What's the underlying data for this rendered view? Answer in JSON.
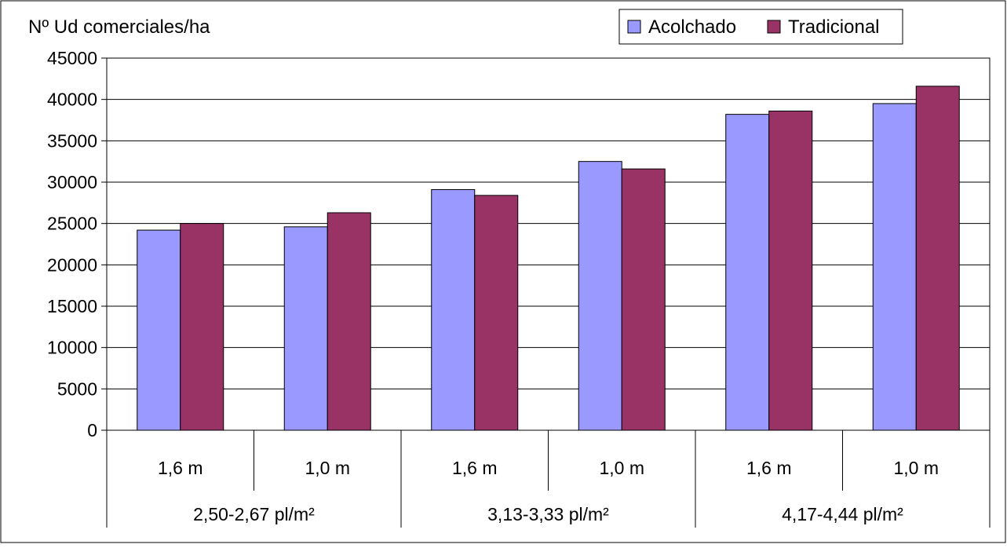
{
  "chart_data": {
    "type": "bar",
    "ylabel": "Nº Ud comerciales/ha",
    "ylim": [
      0,
      45000
    ],
    "ytick_step": 5000,
    "yticks": [
      "0",
      "5000",
      "10000",
      "15000",
      "20000",
      "25000",
      "30000",
      "35000",
      "40000",
      "45000"
    ],
    "grid": true,
    "legend_position": "top-right",
    "categories": [
      "1,6 m",
      "1,0 m",
      "1,6 m",
      "1,0 m",
      "1,6 m",
      "1,0 m"
    ],
    "groups": [
      {
        "label": "2,50-2,67 pl/m²",
        "span": 2
      },
      {
        "label": "3,13-3,33 pl/m²",
        "span": 2
      },
      {
        "label": "4,17-4,44 pl/m²",
        "span": 2
      }
    ],
    "series": [
      {
        "name": "Acolchado",
        "color": "#9999FF",
        "values": [
          24200,
          24600,
          29100,
          32500,
          38200,
          39500
        ]
      },
      {
        "name": "Tradicional",
        "color": "#993366",
        "values": [
          25000,
          26300,
          28400,
          31600,
          38600,
          41600
        ]
      }
    ]
  }
}
